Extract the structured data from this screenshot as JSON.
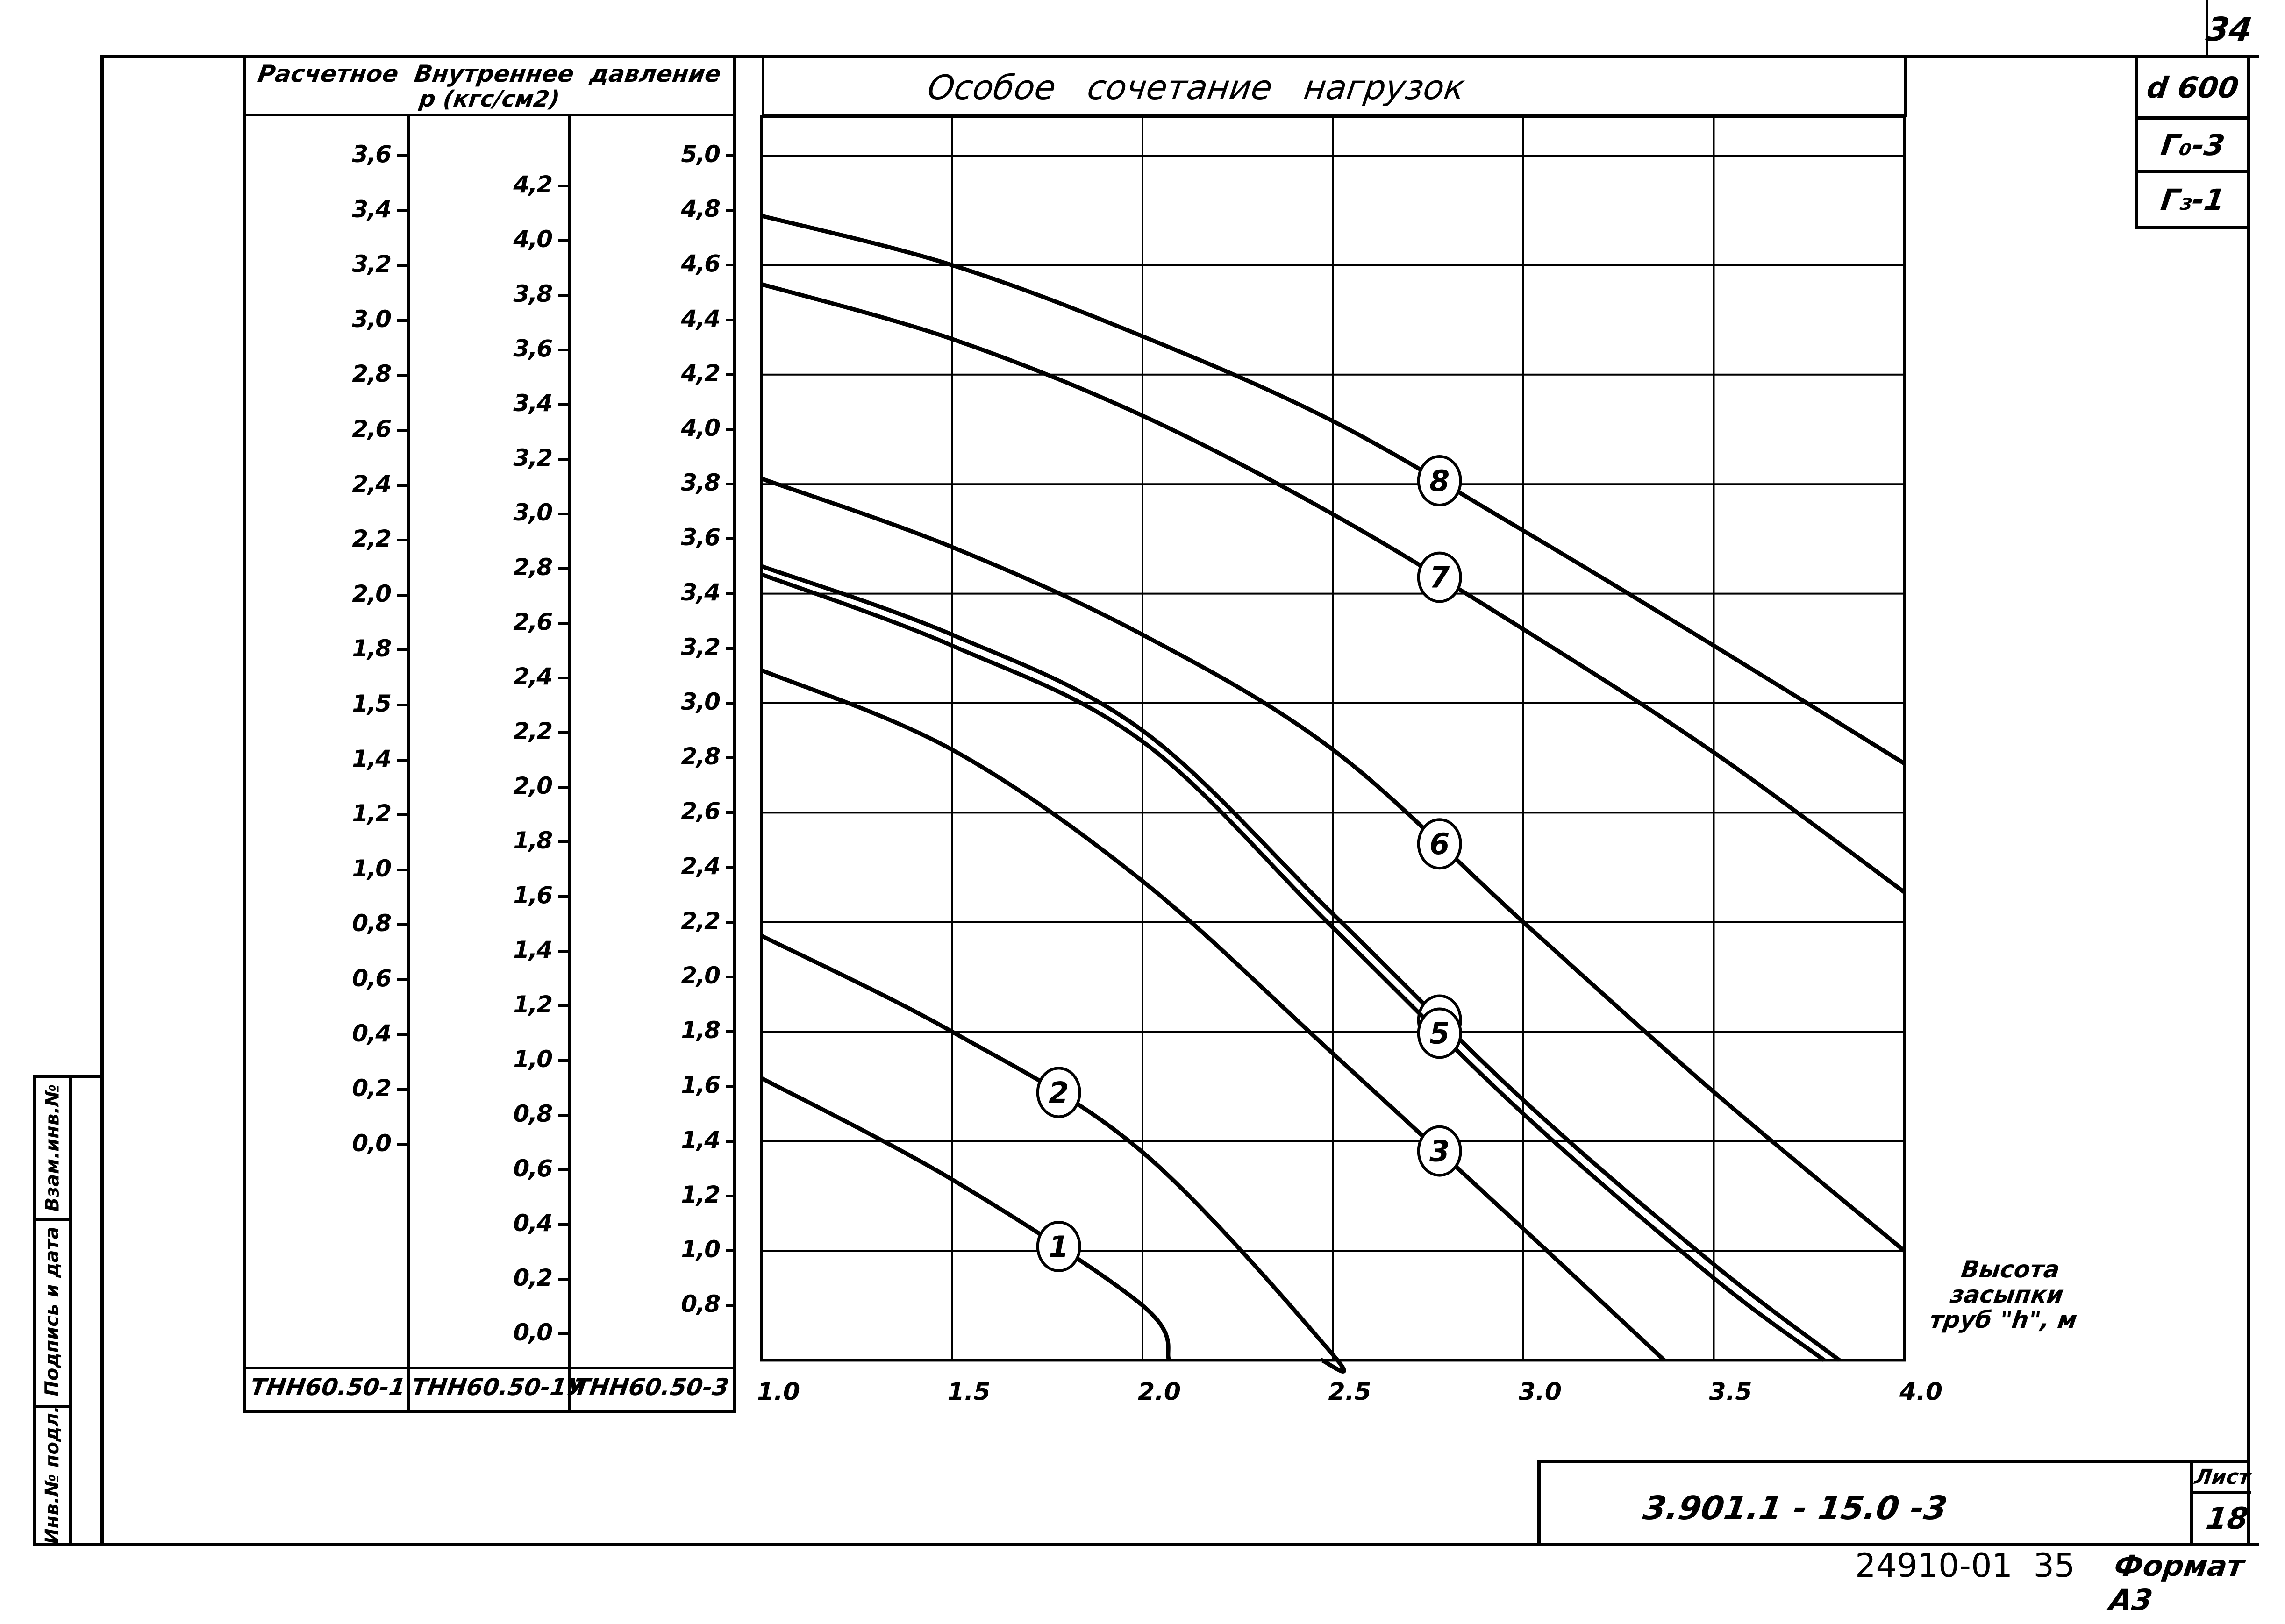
{
  "sheet": {
    "corner_number": "34",
    "stamp_right": [
      "d 600",
      "Г₀-3",
      "Г₃-1"
    ],
    "title_block": {
      "doc_code": "3.901.1 - 15.0 -3",
      "sheet_label": "Лист",
      "sheet_number": "18"
    },
    "footer": {
      "archive_no": "24910-01  35",
      "format": "Формат А3"
    },
    "left_stamp": [
      "Взам.инв.№",
      "Подпись и дата",
      "Инв.№ подл."
    ]
  },
  "pressure_panel": {
    "header_line1": "Расчетное  Внутреннее  давление",
    "header_line2": "р (кгс/см2)",
    "columns": [
      {
        "name": "ТНН60.50-1",
        "ticks": [
          "3.6",
          "3.4",
          "3.2",
          "3.0",
          "2.8",
          "2.6",
          "2.4",
          "2.2",
          "2.0",
          "1.8",
          "1.5",
          "1.4",
          "1.2",
          "1.0",
          "0.8",
          "0.6",
          "0.4",
          "0.2",
          "0.0"
        ]
      },
      {
        "name": "ТНН60.50-1У",
        "ticks": [
          "4.2",
          "4.0",
          "3.8",
          "3.6",
          "3.4",
          "3.2",
          "3.0",
          "2.8",
          "2.6",
          "2.4",
          "2.2",
          "2.0",
          "1.8",
          "1.6",
          "1.4",
          "1.2",
          "1.0",
          "0.8",
          "0.6",
          "0.4",
          "0.2",
          "0.0"
        ]
      },
      {
        "name": "ТНН60.50-3",
        "ticks": [
          "5.0",
          "4.8",
          "4.6",
          "4.4",
          "4.2",
          "4.0",
          "3.8",
          "3.6",
          "3.4",
          "3.2",
          "3.0",
          "2.8",
          "2.6",
          "2.4",
          "2.2",
          "2.0",
          "1.8",
          "1.6",
          "1.4",
          "1.2",
          "1.0",
          "0.8"
        ]
      }
    ]
  },
  "chart_data": {
    "type": "line",
    "title": "Особое   сочетание   нагрузок",
    "xlabel": "Высота засыпки труб \"h\", м",
    "ylabel": "Расчетное внутреннее давление р (кгс/см2) — шкала ТНН60.50-3",
    "xlim": [
      1.0,
      4.0
    ],
    "ylim": [
      0.6,
      5.0
    ],
    "x_ticks": [
      "1.0",
      "1.5",
      "2.0",
      "2.5",
      "3.0",
      "3.5",
      "4.0"
    ],
    "grid": true,
    "x": [
      1.0,
      1.5,
      2.0,
      2.5,
      3.0,
      3.5,
      4.0
    ],
    "series": [
      {
        "name": "1",
        "values": [
          1.63,
          1.26,
          0.8,
          null,
          null,
          null,
          null
        ],
        "end_x": 2.07
      },
      {
        "name": "2",
        "values": [
          2.15,
          1.8,
          1.36,
          0.62,
          null,
          null,
          null
        ],
        "end_x": 2.47
      },
      {
        "name": "3",
        "values": [
          3.12,
          2.83,
          2.35,
          1.72,
          1.08,
          null,
          null
        ],
        "end_x": 3.37
      },
      {
        "name": "4",
        "values": [
          3.5,
          3.25,
          2.9,
          2.23,
          1.55,
          0.95,
          null
        ],
        "end_x": 3.83
      },
      {
        "name": "5",
        "values": [
          3.47,
          3.21,
          2.86,
          2.18,
          1.5,
          0.9,
          null
        ],
        "end_x": 3.79
      },
      {
        "name": "6",
        "values": [
          3.82,
          3.57,
          3.25,
          2.83,
          2.2,
          1.58,
          1.0
        ]
      },
      {
        "name": "7",
        "values": [
          4.53,
          4.33,
          4.05,
          3.69,
          3.27,
          2.82,
          2.31
        ]
      },
      {
        "name": "8",
        "values": [
          4.78,
          4.6,
          4.34,
          4.03,
          3.63,
          3.21,
          2.78
        ]
      }
    ],
    "labels_at_x": {
      "1": 1.78,
      "2": 1.78,
      "3": 2.78,
      "4": 2.78,
      "5": 2.78,
      "6": 2.78,
      "7": 2.78,
      "8": 2.78
    }
  }
}
